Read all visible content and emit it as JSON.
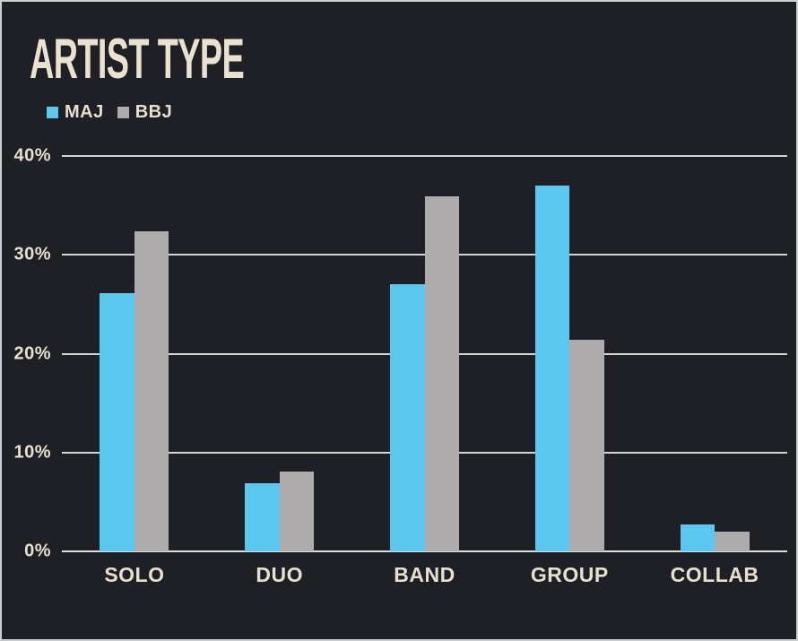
{
  "page": {
    "background": "#1e2026",
    "border_color": "#cdd0d3",
    "text_color": "#e8e0ce"
  },
  "chart_data": {
    "type": "bar",
    "title": "ARTIST TYPE",
    "categories": [
      "SOLO",
      "DUO",
      "BAND",
      "GROUP",
      "COLLAB"
    ],
    "series": [
      {
        "name": "MAJ",
        "color": "#59c7ee",
        "values": [
          26.1,
          6.9,
          27.0,
          37.0,
          2.7
        ]
      },
      {
        "name": "BBJ",
        "color": "#aeabac",
        "values": [
          32.4,
          8.1,
          35.9,
          21.4,
          2.0
        ]
      }
    ],
    "xlabel": "",
    "ylabel": "",
    "ylim": [
      0,
      40
    ],
    "yticks": [
      0,
      10,
      20,
      30,
      40
    ],
    "ytick_labels": [
      "0%",
      "10%",
      "20%",
      "30%",
      "40%"
    ],
    "grid": true,
    "gridline_color": "#d3d4d7",
    "legend_position": "top-left"
  }
}
